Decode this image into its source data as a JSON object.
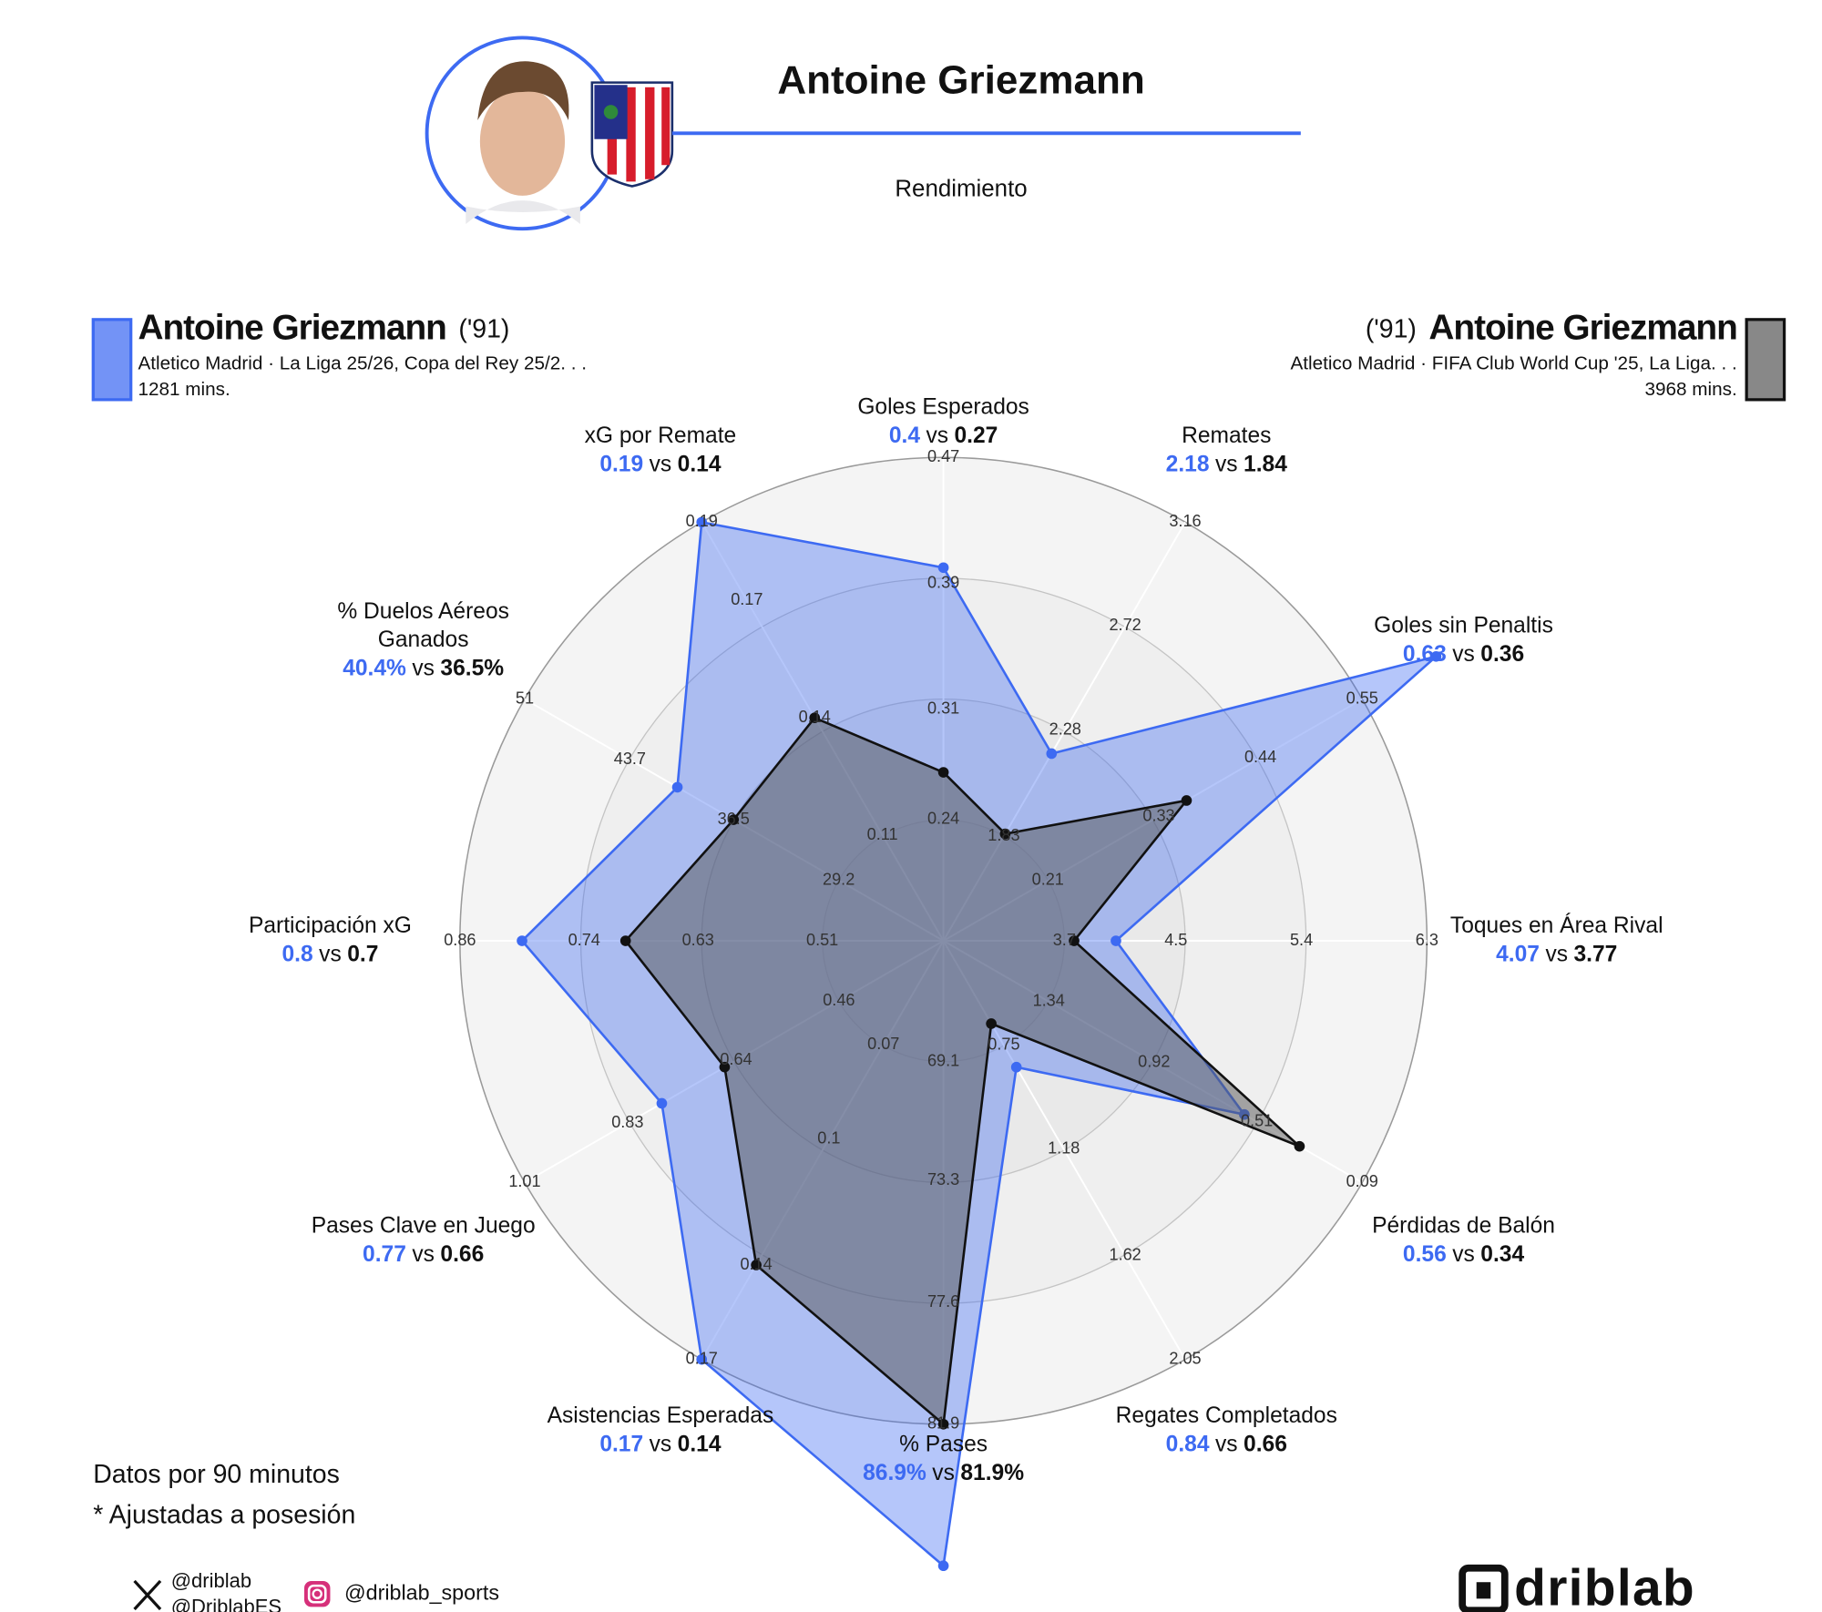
{
  "header": {
    "title": "Antoine Griezmann",
    "subtitle": "Rendimiento"
  },
  "chart_data": {
    "type": "radar",
    "vs": "vs",
    "axes": [
      {
        "label": [
          "Goles Esperados"
        ],
        "ylim": [
          0.163,
          0.47
        ],
        "yticks": [
          0.24,
          0.31,
          0.39,
          0.47
        ]
      },
      {
        "label": [
          "Remates"
        ],
        "ylim": [
          1.387,
          3.16
        ],
        "yticks": [
          1.83,
          2.28,
          2.72,
          3.16
        ]
      },
      {
        "label": [
          "Goles sin Penaltis"
        ],
        "ylim": [
          0.097,
          0.55
        ],
        "yticks": [
          0.21,
          0.33,
          0.44,
          0.55
        ]
      },
      {
        "label": [
          "Toques en Área Rival"
        ],
        "ylim": [
          2.833,
          6.3
        ],
        "yticks": [
          3.7,
          4.5,
          5.4,
          6.3
        ]
      },
      {
        "label": [
          "Pérdidas de Balón"
        ],
        "ylim": [
          1.76,
          0.09
        ],
        "yticks": [
          1.34,
          0.92,
          0.51,
          0.09
        ]
      },
      {
        "label": [
          "Regates Completados"
        ],
        "ylim": [
          0.317,
          2.05
        ],
        "yticks": [
          0.75,
          1.18,
          1.62,
          2.05
        ]
      },
      {
        "label": [
          "% Pases"
        ],
        "ylim": [
          64.83,
          81.9
        ],
        "yticks": [
          69.1,
          73.3,
          77.6,
          81.9
        ]
      },
      {
        "label": [
          "Asistencias Esperadas"
        ],
        "ylim": [
          0.037,
          0.17
        ],
        "yticks": [
          0.07,
          0.1,
          0.14,
          0.17
        ]
      },
      {
        "label": [
          "Pases Clave en Juego"
        ],
        "ylim": [
          0.277,
          1.01
        ],
        "yticks": [
          0.46,
          0.64,
          0.83,
          1.01
        ]
      },
      {
        "label": [
          "Participación xG"
        ],
        "ylim": [
          0.393,
          0.86
        ],
        "yticks": [
          0.51,
          0.63,
          0.74,
          0.86
        ]
      },
      {
        "label": [
          "% Duelos Aéreos",
          "Ganados"
        ],
        "ylim": [
          21.93,
          51
        ],
        "yticks": [
          29.2,
          36.5,
          43.7,
          51
        ]
      },
      {
        "label": [
          "xG por Remate"
        ],
        "ylim": [
          0.083,
          0.19
        ],
        "yticks": [
          0.11,
          0.14,
          0.17,
          0.19
        ]
      }
    ],
    "series": [
      {
        "name": "Antoine Griezmann",
        "birth": "('91)",
        "team": "Atletico Madrid · La Liga 25/26, Copa del Rey 25/2. . .",
        "minutes": "1281 mins.",
        "color": "#3d6af2",
        "values": [
          0.4,
          2.18,
          0.63,
          4.07,
          0.56,
          0.84,
          86.9,
          0.17,
          0.77,
          0.8,
          40.4,
          0.19
        ],
        "value_labels": [
          "0.4",
          "2.18",
          "0.63",
          "4.07",
          "0.56",
          "0.84",
          "86.9%",
          "0.17",
          "0.77",
          "0.8",
          "40.4%",
          "0.19"
        ]
      },
      {
        "name": "Antoine Griezmann",
        "birth": "('91)",
        "team": "Atletico Madrid · FIFA Club World Cup '25, La Liga. . .",
        "minutes": "3968 mins.",
        "color": "#111111",
        "values": [
          0.27,
          1.84,
          0.36,
          3.77,
          0.34,
          0.66,
          81.9,
          0.14,
          0.66,
          0.7,
          36.5,
          0.14
        ],
        "value_labels": [
          "0.27",
          "1.84",
          "0.36",
          "3.77",
          "0.34",
          "0.66",
          "81.9%",
          "0.14",
          "0.66",
          "0.7",
          "36.5%",
          "0.14"
        ]
      }
    ]
  },
  "footer": {
    "notes": [
      "Datos por 90 minutos",
      "* Ajustadas a posesión"
    ],
    "x_handles": [
      "@driblab",
      "@DriblabES"
    ],
    "instagram": "@driblab_sports",
    "logo": "driblab"
  }
}
